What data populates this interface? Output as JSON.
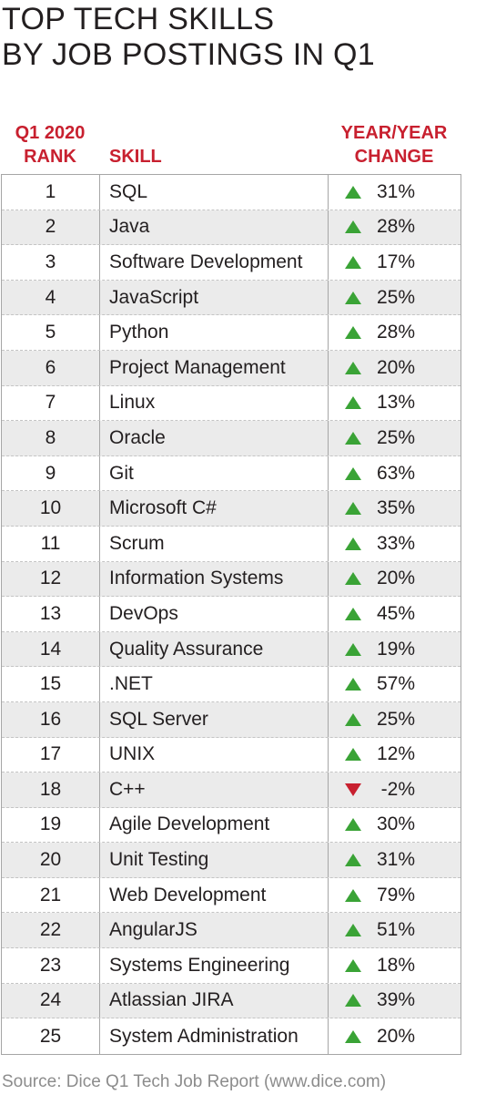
{
  "title": {
    "line1": "TOP TECH SKILLS",
    "line2": "BY JOB POSTINGS IN Q1"
  },
  "headers": {
    "rank_line1": "Q1 2020",
    "rank_line2": "RANK",
    "skill": "SKILL",
    "change_line1": "YEAR/YEAR",
    "change_line2": "CHANGE"
  },
  "colors": {
    "header_red": "#c8202f",
    "up_green": "#3aa336",
    "down_red": "#c8202f",
    "row_alt": "#ebebeb"
  },
  "rows": [
    {
      "rank": "1",
      "skill": "SQL",
      "change": "31%",
      "direction": "up"
    },
    {
      "rank": "2",
      "skill": "Java",
      "change": "28%",
      "direction": "up"
    },
    {
      "rank": "3",
      "skill": "Software Development",
      "change": "17%",
      "direction": "up"
    },
    {
      "rank": "4",
      "skill": "JavaScript",
      "change": "25%",
      "direction": "up"
    },
    {
      "rank": "5",
      "skill": "Python",
      "change": "28%",
      "direction": "up"
    },
    {
      "rank": "6",
      "skill": "Project Management",
      "change": "20%",
      "direction": "up"
    },
    {
      "rank": "7",
      "skill": "Linux",
      "change": "13%",
      "direction": "up"
    },
    {
      "rank": "8",
      "skill": "Oracle",
      "change": "25%",
      "direction": "up"
    },
    {
      "rank": "9",
      "skill": "Git",
      "change": "63%",
      "direction": "up"
    },
    {
      "rank": "10",
      "skill": "Microsoft C#",
      "change": "35%",
      "direction": "up"
    },
    {
      "rank": "11",
      "skill": "Scrum",
      "change": "33%",
      "direction": "up"
    },
    {
      "rank": "12",
      "skill": "Information Systems",
      "change": "20%",
      "direction": "up"
    },
    {
      "rank": "13",
      "skill": "DevOps",
      "change": "45%",
      "direction": "up"
    },
    {
      "rank": "14",
      "skill": "Quality Assurance",
      "change": "19%",
      "direction": "up"
    },
    {
      "rank": "15",
      "skill": ".NET",
      "change": "57%",
      "direction": "up"
    },
    {
      "rank": "16",
      "skill": "SQL Server",
      "change": "25%",
      "direction": "up"
    },
    {
      "rank": "17",
      "skill": "UNIX",
      "change": "12%",
      "direction": "up"
    },
    {
      "rank": "18",
      "skill": "C++",
      "change": "-2%",
      "direction": "down"
    },
    {
      "rank": "19",
      "skill": "Agile Development",
      "change": "30%",
      "direction": "up"
    },
    {
      "rank": "20",
      "skill": "Unit Testing",
      "change": "31%",
      "direction": "up"
    },
    {
      "rank": "21",
      "skill": "Web Development",
      "change": "79%",
      "direction": "up"
    },
    {
      "rank": "22",
      "skill": "AngularJS",
      "change": "51%",
      "direction": "up"
    },
    {
      "rank": "23",
      "skill": "Systems Engineering",
      "change": "18%",
      "direction": "up"
    },
    {
      "rank": "24",
      "skill": "Atlassian JIRA",
      "change": "39%",
      "direction": "up"
    },
    {
      "rank": "25",
      "skill": "System Administration",
      "change": "20%",
      "direction": "up"
    }
  ],
  "source": "Source: Dice Q1 Tech Job Report (www.dice.com)"
}
